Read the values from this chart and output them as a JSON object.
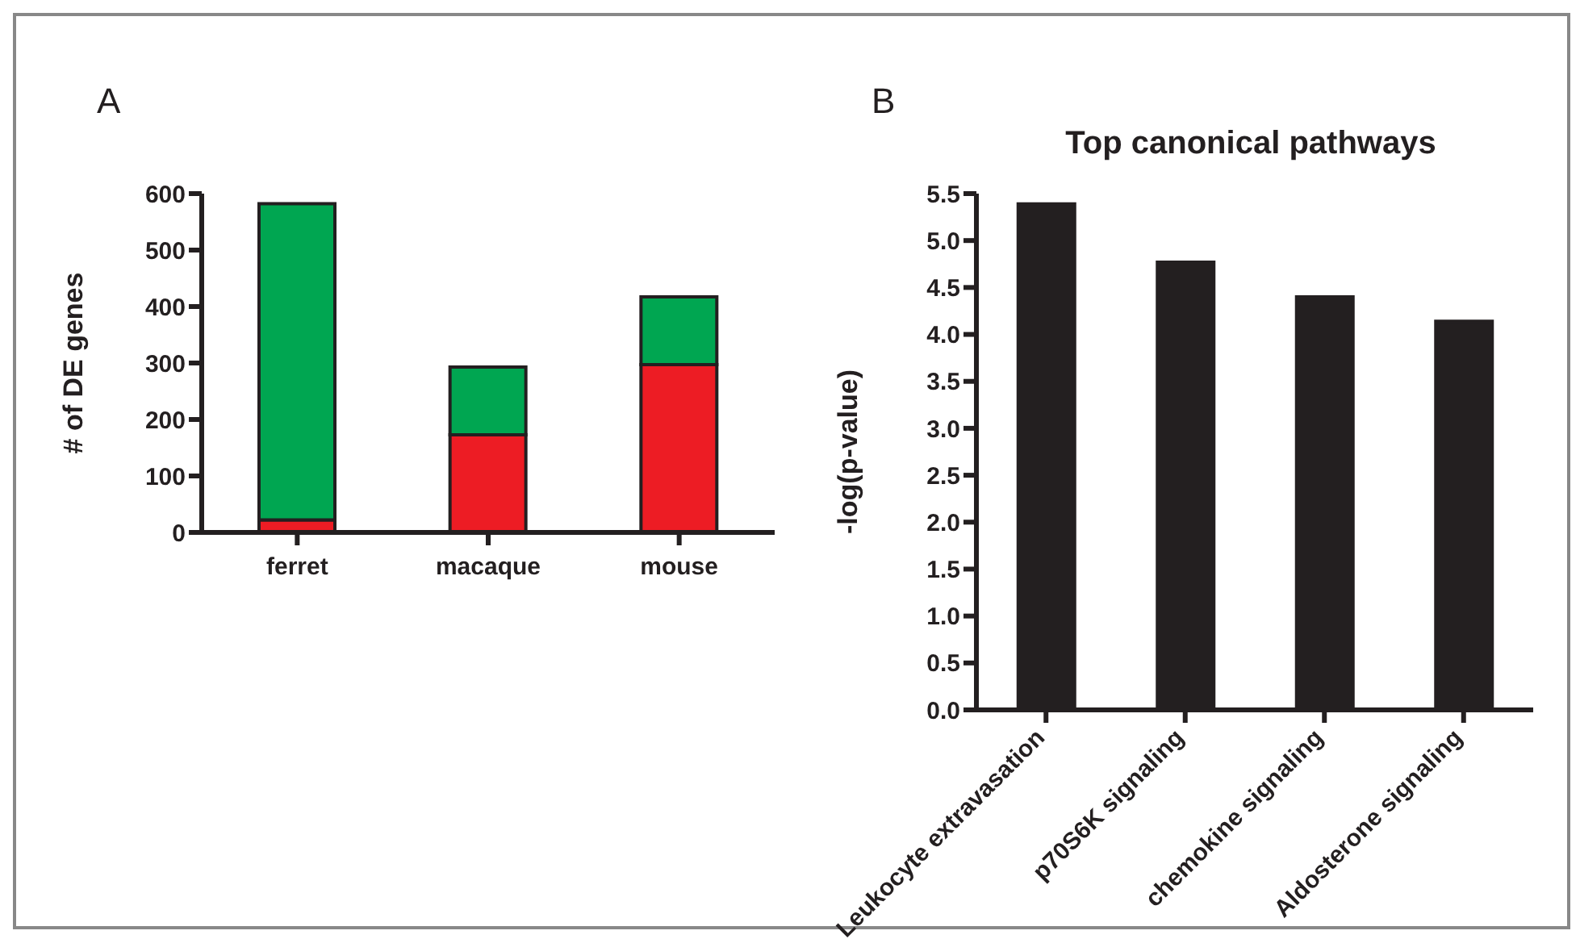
{
  "chart_data": [
    {
      "type": "bar",
      "annotations": [
        "A"
      ],
      "ylabel": "# of DE genes",
      "categories": [
        "ferret",
        "macaque",
        "mouse"
      ],
      "stacked": true,
      "series": [
        {
          "color": "#ed1c24",
          "values": [
            22,
            173,
            297
          ]
        },
        {
          "color": "#00a651",
          "values": [
            560,
            120,
            120
          ]
        }
      ],
      "ylim": [
        0,
        600
      ],
      "yticks": [
        0,
        100,
        200,
        300,
        400,
        500,
        600
      ],
      "grid": false,
      "legend": false
    },
    {
      "type": "bar",
      "annotations": [
        "B"
      ],
      "title": "Top canonical pathways",
      "ylabel": "-log(p-value)",
      "categories": [
        "Leukocyte extravasation",
        "p70S6K signaling",
        "chemokine signaling",
        "Aldosterone signaling"
      ],
      "series": [
        {
          "color": "#231f20",
          "values": [
            5.39,
            4.77,
            4.4,
            4.14
          ]
        }
      ],
      "ylim": [
        0,
        5.5
      ],
      "yticks": [
        {
          "value": 0,
          "label": "0.0"
        },
        {
          "value": 0.5,
          "label": "0.5"
        },
        {
          "value": 1,
          "label": "1.0"
        },
        {
          "value": 1.5,
          "label": "1.5"
        },
        {
          "value": 2,
          "label": "2.0"
        },
        {
          "value": 2.5,
          "label": "2.5"
        },
        {
          "value": 3,
          "label": "3.0"
        },
        {
          "value": 3.5,
          "label": "3.5"
        },
        {
          "value": 4,
          "label": "4.0"
        },
        {
          "value": 4.5,
          "label": "4.5"
        },
        {
          "value": 5,
          "label": "5.0"
        },
        {
          "value": 5.5,
          "label": "5.5"
        }
      ],
      "grid": false,
      "legend": false
    }
  ]
}
